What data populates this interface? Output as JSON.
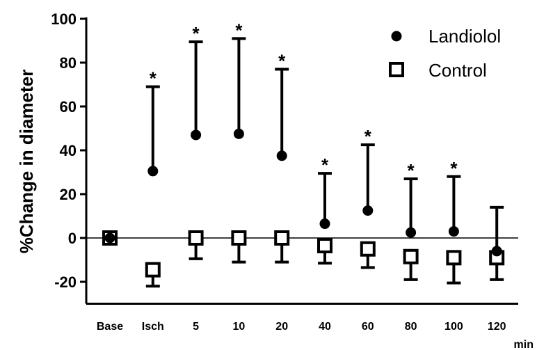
{
  "chart_data": {
    "type": "scatter",
    "categories": [
      "Base",
      "Isch",
      "5",
      "10",
      "20",
      "40",
      "60",
      "80",
      "100",
      "120"
    ],
    "x_unit": "min",
    "ylabel": "%Change in diameter",
    "ylim": [
      -30,
      100
    ],
    "yticks": [
      100,
      80,
      60,
      40,
      20,
      0,
      -20
    ],
    "legend_position": "top-right",
    "significance_marker": "*",
    "series": [
      {
        "name": "Landiolol",
        "marker": "filled-circle",
        "color": "#000000",
        "values": [
          0,
          30.5,
          47,
          47.5,
          37.5,
          6.5,
          12.5,
          2.5,
          3,
          -6
        ],
        "error_upper": [
          0,
          69,
          89.5,
          91,
          77,
          29.5,
          42.5,
          27,
          28,
          14
        ],
        "significant": [
          false,
          true,
          true,
          true,
          true,
          true,
          true,
          true,
          true,
          false
        ]
      },
      {
        "name": "Control",
        "marker": "open-square",
        "color": "#000000",
        "values": [
          0,
          -14.5,
          0,
          0,
          0,
          -3.5,
          -5,
          -8.5,
          -9,
          -9
        ],
        "error_lower": [
          0,
          -22,
          -9.5,
          -11,
          -11,
          -11.5,
          -13.5,
          -19,
          -20.5,
          -19
        ]
      }
    ]
  }
}
